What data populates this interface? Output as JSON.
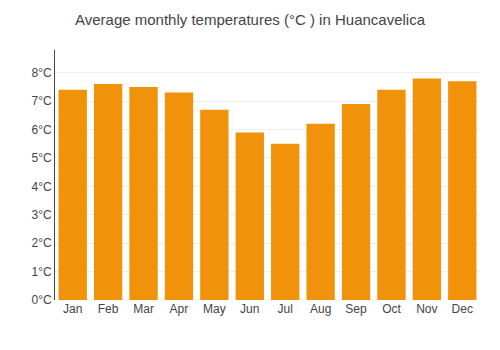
{
  "chart_data": {
    "type": "bar",
    "title": "Average monthly temperatures (°C ) in Huancavelica",
    "categories": [
      "Jan",
      "Feb",
      "Mar",
      "Apr",
      "May",
      "Jun",
      "Jul",
      "Aug",
      "Sep",
      "Oct",
      "Nov",
      "Dec"
    ],
    "values": [
      7.4,
      7.6,
      7.5,
      7.3,
      6.7,
      5.9,
      5.5,
      6.2,
      6.9,
      7.4,
      7.8,
      7.7
    ],
    "color": "#F0920A",
    "ylim": [
      0,
      8.8
    ],
    "yticks": [
      {
        "value": 0,
        "label": "0°C"
      },
      {
        "value": 1,
        "label": "1°C"
      },
      {
        "value": 2,
        "label": "2°C"
      },
      {
        "value": 3,
        "label": "3°C"
      },
      {
        "value": 4,
        "label": "4°C"
      },
      {
        "value": 5,
        "label": "5°C"
      },
      {
        "value": 6,
        "label": "6°C"
      },
      {
        "value": 7,
        "label": "7°C"
      },
      {
        "value": 8,
        "label": "8°C"
      }
    ],
    "grid": true
  }
}
